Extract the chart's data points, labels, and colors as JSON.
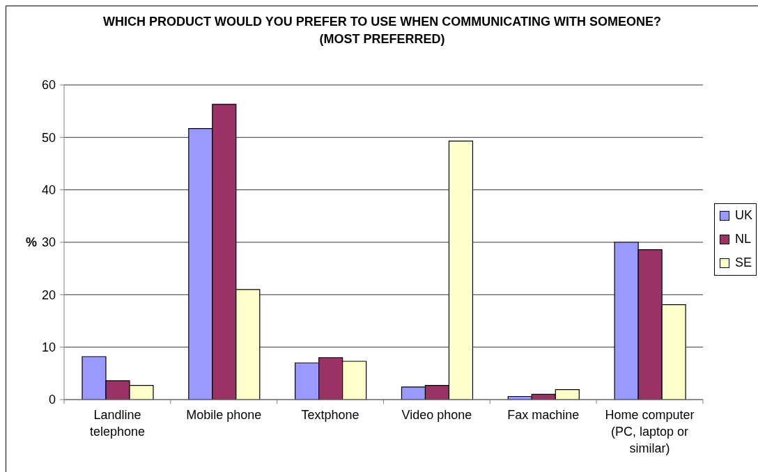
{
  "chart_data": {
    "type": "bar",
    "title": "WHICH PRODUCT WOULD YOU PREFER TO USE WHEN COMMUNICATING WITH SOMEONE?",
    "subtitle": "(MOST PREFERRED)",
    "ylabel": "%",
    "categories": [
      "Landline telephone",
      "Mobile phone",
      "Textphone",
      "Video phone",
      "Fax machine",
      "Home computer (PC, laptop or similar)"
    ],
    "series": [
      {
        "name": "UK",
        "color": "#9999ff",
        "values": [
          8.2,
          51.7,
          7.0,
          2.4,
          0.6,
          30.0
        ]
      },
      {
        "name": "NL",
        "color": "#993366",
        "values": [
          3.6,
          56.3,
          8.0,
          2.7,
          1.0,
          28.6
        ]
      },
      {
        "name": "SE",
        "color": "#ffffcc",
        "values": [
          2.7,
          21.0,
          7.3,
          49.3,
          1.9,
          18.1
        ]
      }
    ],
    "ylim": [
      0,
      60
    ],
    "yticks": [
      0,
      10,
      20,
      30,
      40,
      50,
      60
    ],
    "grid": "y",
    "legend": "right"
  }
}
